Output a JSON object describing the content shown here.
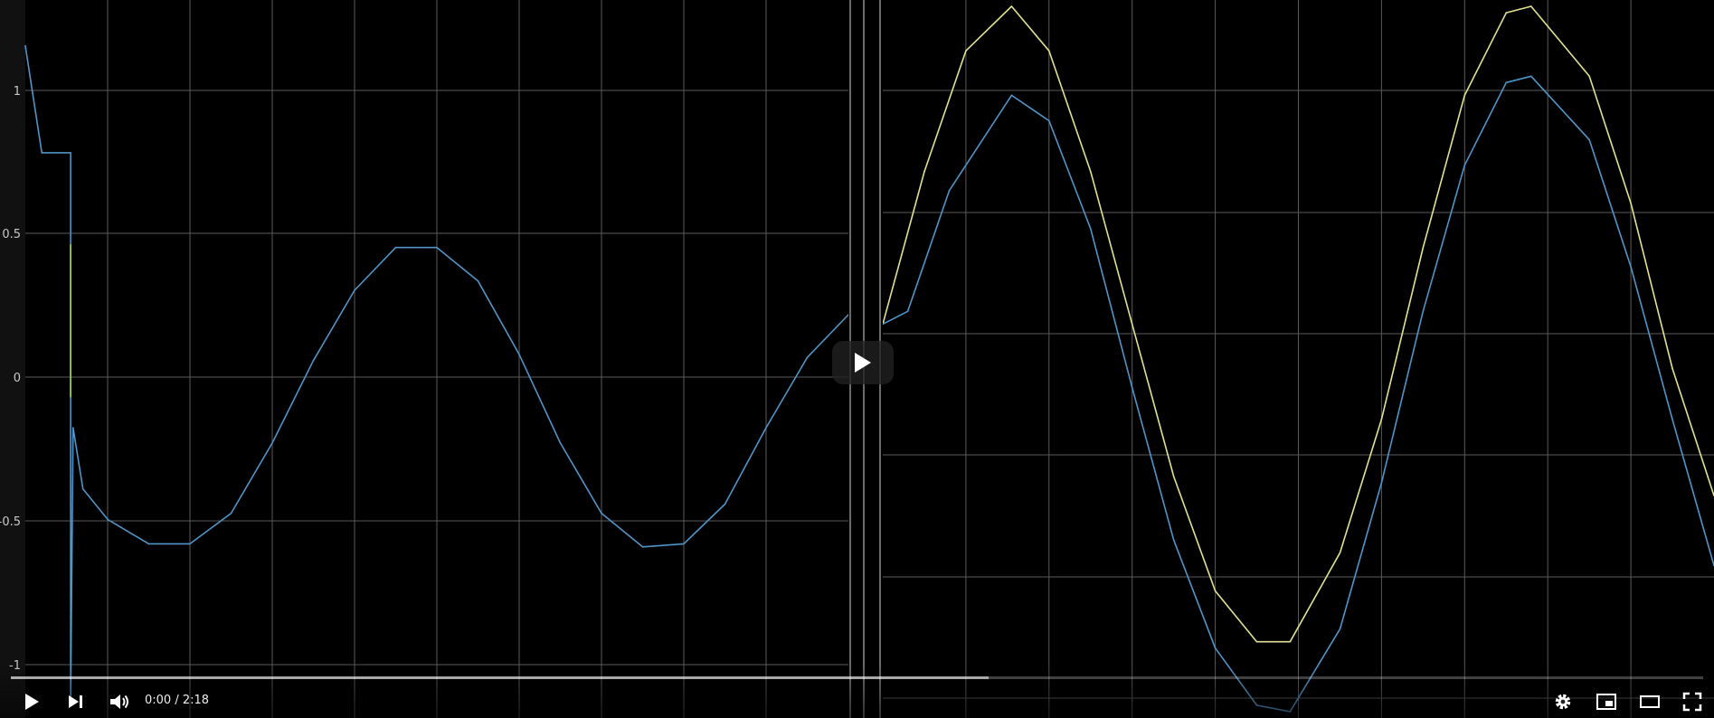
{
  "player": {
    "time_current": "0:00",
    "time_total": "2:18",
    "time_separator": " / ",
    "buffered_fraction": 0.578
  },
  "icons": {
    "play": "play-icon",
    "next": "next-icon",
    "volume": "volume-icon",
    "settings": "gear-icon",
    "miniplayer": "miniplayer-icon",
    "theater": "theater-icon",
    "fullscreen": "fullscreen-icon",
    "big_play": "big-play-icon"
  },
  "colors": {
    "background": "#000000",
    "blue_trace": "#4f95c8",
    "yellow_trace": "#e3e28e",
    "green_trace": "#9bd14a"
  },
  "chart_data": [
    {
      "type": "line",
      "title": "",
      "xlabel": "",
      "ylabel": "",
      "xlim": [
        0,
        10
      ],
      "ylim": [
        -1.05,
        1.3
      ],
      "yticks": [
        "1",
        "0.5",
        "0",
        "-0.5",
        "-1"
      ],
      "grid": true,
      "series": [
        {
          "x": [
            0,
            0.2,
            0.55,
            0.55,
            0.58,
            0.7,
            1.0,
            1.5,
            2.0,
            2.5,
            3.0,
            3.5,
            4.0,
            4.5,
            5.0,
            5.5,
            6.0,
            6.5,
            7.0,
            7.5,
            8.0,
            8.5,
            9.0,
            9.5,
            10.0
          ],
          "y": [
            1.15,
            0.8,
            0.8,
            -1.0,
            -0.1,
            -0.3,
            -0.4,
            -0.48,
            -0.48,
            -0.38,
            -0.15,
            0.12,
            0.35,
            0.49,
            0.49,
            0.38,
            0.14,
            -0.15,
            -0.38,
            -0.49,
            -0.48,
            -0.35,
            -0.1,
            0.13,
            0.27
          ]
        }
      ]
    },
    {
      "type": "line",
      "title": "",
      "xlabel": "",
      "ylabel": "",
      "xlim": [
        0,
        10
      ],
      "ylim": [
        -6.2,
        5.1
      ],
      "yticks": [
        "4",
        "2",
        "0",
        "-2",
        "-4",
        "-6"
      ],
      "grid": true,
      "series": [
        {
          "x": [
            0,
            0.5,
            1.0,
            1.55,
            2.0,
            2.5,
            3.0,
            3.5,
            4.0,
            4.5,
            4.9,
            5.5,
            6.0,
            6.5,
            7.0,
            7.5,
            7.8,
            8.5,
            9.0,
            9.5,
            10.0
          ],
          "y": [
            0.0,
            2.4,
            4.3,
            5.0,
            4.3,
            2.4,
            0.0,
            -2.4,
            -4.2,
            -5.0,
            -5.0,
            -3.6,
            -1.5,
            1.2,
            3.6,
            4.9,
            5.0,
            3.9,
            1.9,
            -0.7,
            -2.7
          ]
        },
        {
          "x": [
            0,
            0.3,
            0.8,
            1.55,
            2.0,
            2.5,
            3.0,
            3.5,
            4.0,
            4.5,
            4.9,
            5.5,
            6.0,
            6.5,
            7.0,
            7.5,
            7.8,
            8.5,
            9.0,
            9.5,
            10.0
          ],
          "y": [
            0.0,
            0.2,
            2.1,
            3.6,
            3.2,
            1.5,
            -1.0,
            -3.4,
            -5.1,
            -6.0,
            -6.1,
            -4.8,
            -2.5,
            0.2,
            2.5,
            3.8,
            3.9,
            2.9,
            0.9,
            -1.5,
            -3.8
          ]
        }
      ]
    }
  ]
}
